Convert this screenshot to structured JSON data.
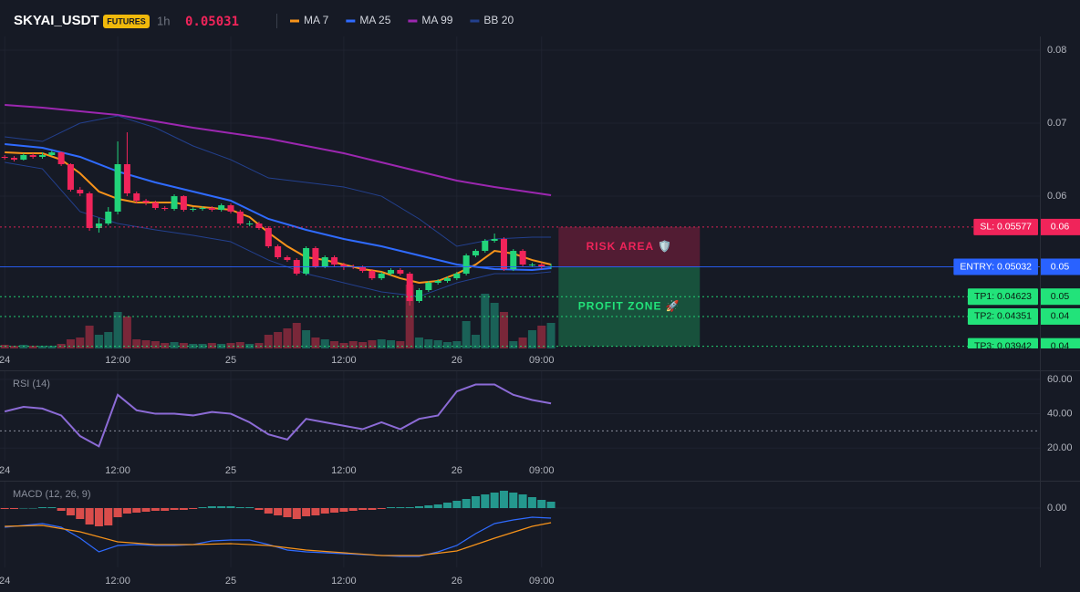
{
  "header": {
    "symbol": "SKYAI_USDT",
    "badge": "FUTURES",
    "interval": "1h",
    "price": 0.05031
  },
  "chart_data": [
    {
      "type": "candlestick",
      "x": [
        0,
        1,
        2,
        3,
        4,
        5,
        6,
        7,
        8,
        9,
        10,
        11,
        12,
        13,
        14,
        15,
        16,
        17,
        18,
        19,
        20,
        21,
        22,
        23,
        24,
        25,
        26,
        27,
        28,
        29,
        30,
        31,
        32,
        33,
        34,
        35,
        36,
        37,
        38,
        39,
        40,
        41,
        42,
        43,
        44,
        45,
        46,
        47,
        48,
        49,
        50,
        51,
        52,
        53,
        54,
        55,
        56,
        57,
        58
      ],
      "opens": [
        0.06538,
        0.06525,
        0.065,
        0.06563,
        0.06538,
        0.06563,
        0.066,
        0.06438,
        0.06088,
        0.06038,
        0.05563,
        0.05625,
        0.05788,
        0.06438,
        0.06038,
        0.05938,
        0.05913,
        0.05838,
        0.05825,
        0.06,
        0.05813,
        0.05825,
        0.05838,
        0.05813,
        0.05875,
        0.05788,
        0.05625,
        0.05625,
        0.05563,
        0.05313,
        0.05163,
        0.05125,
        0.04938,
        0.05288,
        0.05038,
        0.05163,
        0.05063,
        0.05038,
        0.05025,
        0.04975,
        0.04875,
        0.04938,
        0.04988,
        0.04938,
        0.04563,
        0.04713,
        0.04813,
        0.04838,
        0.04875,
        0.04938,
        0.05188,
        0.0525,
        0.05388,
        0.05413,
        0.05,
        0.0525,
        0.05063,
        0.05063,
        0.05038
      ],
      "highs": [
        0.06563,
        0.0655,
        0.06588,
        0.06588,
        0.066,
        0.06625,
        0.06613,
        0.0645,
        0.06125,
        0.06063,
        0.057,
        0.0585,
        0.0675,
        0.06875,
        0.06063,
        0.05963,
        0.05938,
        0.05863,
        0.06025,
        0.06013,
        0.0585,
        0.05863,
        0.05863,
        0.059,
        0.059,
        0.05813,
        0.05663,
        0.0565,
        0.05588,
        0.05338,
        0.05188,
        0.0515,
        0.05313,
        0.05313,
        0.05188,
        0.05188,
        0.05088,
        0.05063,
        0.0505,
        0.05,
        0.04963,
        0.05013,
        0.05013,
        0.04963,
        0.04738,
        0.04838,
        0.04863,
        0.049,
        0.04963,
        0.05213,
        0.05275,
        0.05413,
        0.05488,
        0.05438,
        0.05275,
        0.05275,
        0.05088,
        0.05088,
        0.05075
      ],
      "lows": [
        0.065,
        0.06475,
        0.06488,
        0.06513,
        0.06513,
        0.0655,
        0.06413,
        0.06063,
        0.06,
        0.05525,
        0.055,
        0.056,
        0.0575,
        0.06,
        0.059,
        0.05875,
        0.05813,
        0.058,
        0.058,
        0.05788,
        0.05788,
        0.058,
        0.05788,
        0.05788,
        0.05763,
        0.056,
        0.05588,
        0.05538,
        0.05288,
        0.05138,
        0.051,
        0.04913,
        0.04913,
        0.05013,
        0.05013,
        0.05038,
        0.04988,
        0.05,
        0.0495,
        0.0485,
        0.0485,
        0.04913,
        0.04913,
        0.045,
        0.04538,
        0.04688,
        0.04788,
        0.04813,
        0.0485,
        0.04913,
        0.05163,
        0.05225,
        0.05363,
        0.04975,
        0.04975,
        0.05038,
        0.05038,
        0.05,
        0.05
      ],
      "closes": [
        0.06525,
        0.065,
        0.06563,
        0.06538,
        0.06563,
        0.066,
        0.06438,
        0.06088,
        0.06038,
        0.05563,
        0.05625,
        0.05788,
        0.06438,
        0.06038,
        0.05938,
        0.05913,
        0.05838,
        0.05825,
        0.06,
        0.05813,
        0.05825,
        0.05838,
        0.05813,
        0.05875,
        0.05788,
        0.05625,
        0.05625,
        0.05563,
        0.05313,
        0.05163,
        0.05125,
        0.04938,
        0.05288,
        0.05038,
        0.05163,
        0.05063,
        0.05038,
        0.05025,
        0.04975,
        0.04875,
        0.04938,
        0.04988,
        0.04938,
        0.04563,
        0.04713,
        0.04813,
        0.04838,
        0.04875,
        0.04938,
        0.05188,
        0.0525,
        0.05388,
        0.05413,
        0.05,
        0.0525,
        0.05063,
        0.05063,
        0.05038,
        0.05038
      ],
      "volume": [
        4,
        3,
        4,
        3,
        3,
        3,
        5,
        10,
        12,
        25,
        15,
        18,
        40,
        35,
        10,
        9,
        8,
        6,
        7,
        6,
        5,
        5,
        6,
        5,
        6,
        7,
        5,
        6,
        15,
        18,
        22,
        28,
        20,
        12,
        10,
        8,
        6,
        8,
        7,
        9,
        10,
        9,
        8,
        70,
        12,
        10,
        9,
        7,
        8,
        30,
        15,
        60,
        50,
        40,
        8,
        12,
        20,
        25,
        28
      ],
      "volume_ylim": [
        0,
        100
      ],
      "up_color": "#22d37a",
      "down_color": "#f0245a",
      "volume_up_color": "#1b6f60",
      "volume_down_color": "#8b2a3d",
      "series": [
        {
          "name": "MA 7",
          "color": "#f7931a",
          "x": [
            0,
            2,
            4,
            6,
            8,
            10,
            12,
            14,
            16,
            18,
            20,
            22,
            24,
            26,
            28,
            30,
            32,
            34,
            36,
            38,
            40,
            42,
            44,
            46,
            48,
            50,
            52,
            54,
            56,
            58
          ],
          "values": [
            0.066,
            0.06588,
            0.06588,
            0.065,
            0.06313,
            0.06063,
            0.05963,
            0.05913,
            0.05913,
            0.05913,
            0.05863,
            0.05838,
            0.05813,
            0.05713,
            0.055,
            0.05313,
            0.05163,
            0.05125,
            0.05063,
            0.05,
            0.04963,
            0.04875,
            0.04813,
            0.04838,
            0.04938,
            0.05063,
            0.0525,
            0.05213,
            0.05125,
            0.05063
          ]
        },
        {
          "name": "MA 25",
          "color": "#2f6bff",
          "x": [
            0,
            4,
            8,
            12,
            16,
            20,
            24,
            28,
            32,
            36,
            40,
            44,
            48,
            52,
            56,
            58
          ],
          "values": [
            0.06713,
            0.06663,
            0.06538,
            0.06338,
            0.06188,
            0.06063,
            0.05938,
            0.05688,
            0.05538,
            0.05413,
            0.05313,
            0.05188,
            0.05063,
            0.05,
            0.04988,
            0.05013
          ]
        },
        {
          "name": "MA 99",
          "color": "#9c27b0",
          "x": [
            0,
            4,
            8,
            12,
            16,
            20,
            24,
            28,
            32,
            36,
            40,
            44,
            48,
            52,
            56,
            58
          ],
          "values": [
            0.0725,
            0.07213,
            0.07163,
            0.07113,
            0.07025,
            0.06938,
            0.06863,
            0.06788,
            0.06688,
            0.06588,
            0.06463,
            0.06338,
            0.06213,
            0.06125,
            0.0605,
            0.06013
          ]
        },
        {
          "name": "BB 20",
          "color": "#23408e",
          "x": [
            0,
            4,
            8,
            12,
            16,
            20,
            24,
            28,
            32,
            36,
            40,
            44,
            48,
            52,
            56,
            58
          ],
          "values": [
            0.06813,
            0.0675,
            0.07,
            0.071,
            0.06938,
            0.06688,
            0.065,
            0.0625,
            0.06188,
            0.06125,
            0.06,
            0.05688,
            0.05313,
            0.05413,
            0.05438,
            0.05438
          ],
          "lower": [
            0.06463,
            0.06375,
            0.05788,
            0.05625,
            0.05538,
            0.05463,
            0.05375,
            0.05125,
            0.04938,
            0.04813,
            0.04688,
            0.04625,
            0.04813,
            0.04938,
            0.04938,
            0.04963
          ]
        }
      ],
      "levels": [
        {
          "value": 0.05577,
          "label": "SL: 0.05577",
          "axis_label": "0.06",
          "color": "#f0245a",
          "text_color": "#ffffff",
          "style": "dotted"
        },
        {
          "value": 0.05032,
          "label": "ENTRY: 0.05032",
          "axis_label": "0.05",
          "color": "#2962ff",
          "text_color": "#ffffff",
          "style": "solid"
        },
        {
          "value": 0.04623,
          "label": "TP1: 0.04623",
          "axis_label": "0.05",
          "color": "#22e37a",
          "text_color": "#0b1a12",
          "style": "dotted"
        },
        {
          "value": 0.04351,
          "label": "TP2: 0.04351",
          "axis_label": "0.04",
          "color": "#22e37a",
          "text_color": "#0b1a12",
          "style": "dotted"
        },
        {
          "value": 0.03942,
          "label": "TP3: 0.03942",
          "axis_label": "0.04",
          "color": "#22e37a",
          "text_color": "#0b1a12",
          "style": "dotted"
        }
      ],
      "zones": [
        {
          "label": "RISK AREA 🛡️",
          "from": 0.05577,
          "to": 0.05032,
          "x_from": 58.8,
          "x_to": 73.8,
          "color": "#f0245a"
        },
        {
          "label": "PROFIT ZONE 🚀",
          "from": 0.05032,
          "to": 0.03942,
          "x_from": 58.8,
          "x_to": 73.8,
          "color": "#22e37a"
        }
      ],
      "xlim": [
        -0.5,
        109.9
      ],
      "xticks": [
        {
          "value": 0,
          "label": "24"
        },
        {
          "value": 12,
          "label": "12:00"
        },
        {
          "value": 24,
          "label": "25"
        },
        {
          "value": 36,
          "label": "12:00"
        },
        {
          "value": 48,
          "label": "26"
        },
        {
          "value": 57,
          "label": "09:00"
        }
      ],
      "ylim": [
        0.03913,
        0.08188
      ],
      "yticks": [
        0.06,
        0.07,
        0.08
      ],
      "grid": true
    },
    {
      "type": "line",
      "title": "RSI (14)",
      "series": [
        {
          "color": "#8c6bd6",
          "x": [
            0,
            2,
            4,
            6,
            8,
            10,
            12,
            14,
            16,
            18,
            20,
            22,
            24,
            26,
            28,
            30,
            32,
            34,
            36,
            38,
            40,
            42,
            44,
            46,
            48,
            50,
            52,
            54,
            56,
            58
          ],
          "values": [
            41.3,
            44,
            43,
            39,
            27,
            21,
            51,
            42,
            40,
            40,
            39,
            41,
            40,
            35,
            28,
            25,
            37,
            35,
            33,
            31,
            35,
            31,
            37,
            39,
            53,
            57,
            57,
            51,
            48,
            46
          ]
        }
      ],
      "reference_line": 30,
      "xlim": [
        -0.5,
        109.9
      ],
      "xticks": [
        {
          "value": 0,
          "label": "24"
        },
        {
          "value": 12,
          "label": "12:00"
        },
        {
          "value": 24,
          "label": "25"
        },
        {
          "value": 36,
          "label": "12:00"
        },
        {
          "value": 48,
          "label": "26"
        },
        {
          "value": 57,
          "label": "09:00"
        }
      ],
      "ylim": [
        12.7,
        64.7
      ],
      "yticks": [
        {
          "value": 20,
          "label": "20.00"
        },
        {
          "value": 40,
          "label": "40.00"
        },
        {
          "value": 60,
          "label": "60.00"
        }
      ],
      "grid": true
    },
    {
      "type": "macd",
      "title": "MACD (12, 26, 9)",
      "x": [
        0,
        1,
        2,
        3,
        4,
        5,
        6,
        7,
        8,
        9,
        10,
        11,
        12,
        13,
        14,
        15,
        16,
        17,
        18,
        19,
        20,
        21,
        22,
        23,
        24,
        25,
        26,
        27,
        28,
        29,
        30,
        31,
        32,
        33,
        34,
        35,
        36,
        37,
        38,
        39,
        40,
        41,
        42,
        43,
        44,
        45,
        46,
        47,
        48,
        49,
        50,
        51,
        52,
        53,
        54,
        55,
        56,
        57,
        58
      ],
      "histogram": [
        -0.0001,
        -0.0001,
        0,
        0,
        0.0001,
        0.0001,
        -0.0003,
        -0.0008,
        -0.0012,
        -0.0018,
        -0.002,
        -0.0019,
        -0.001,
        -0.0006,
        -0.0005,
        -0.0004,
        -0.0003,
        -0.0003,
        -0.0002,
        -0.0002,
        -0.0001,
        0.0001,
        0.0002,
        0.0002,
        0.0002,
        0.0001,
        0.0001,
        -0.0002,
        -0.0006,
        -0.0008,
        -0.001,
        -0.0012,
        -0.0009,
        -0.0008,
        -0.0006,
        -0.0005,
        -0.0004,
        -0.0003,
        -0.0002,
        -0.0002,
        -0.0001,
        0.0001,
        0.0001,
        0.0001,
        0.0002,
        0.0003,
        0.0004,
        0.0006,
        0.0008,
        0.001,
        0.0013,
        0.0015,
        0.0017,
        0.0019,
        0.0017,
        0.0015,
        0.0012,
        0.0009,
        0.0007
      ],
      "positive_color": "#26a69a",
      "negative_color": "#ef5350",
      "series": [
        {
          "color": "#2f6bff",
          "x": [
            0,
            2,
            4,
            6,
            8,
            10,
            12,
            14,
            16,
            18,
            20,
            22,
            24,
            26,
            28,
            30,
            32,
            34,
            36,
            38,
            40,
            42,
            44,
            46,
            48,
            50,
            52,
            54,
            56,
            58
          ],
          "values": [
            -0.0021,
            -0.0019,
            -0.0017,
            -0.0021,
            -0.0033,
            -0.0048,
            -0.0041,
            -0.004,
            -0.0041,
            -0.0041,
            -0.004,
            -0.0036,
            -0.0035,
            -0.0035,
            -0.004,
            -0.0046,
            -0.0048,
            -0.0049,
            -0.005,
            -0.0051,
            -0.0052,
            -0.0053,
            -0.0053,
            -0.0048,
            -0.0041,
            -0.0028,
            -0.0017,
            -0.0013,
            -0.001,
            -0.0011
          ]
        },
        {
          "color": "#f7931a",
          "x": [
            0,
            4,
            8,
            12,
            16,
            20,
            24,
            28,
            32,
            36,
            40,
            44,
            48,
            52,
            56,
            58
          ],
          "values": [
            -0.002,
            -0.0019,
            -0.0026,
            -0.0037,
            -0.004,
            -0.004,
            -0.0039,
            -0.0041,
            -0.0046,
            -0.0049,
            -0.0052,
            -0.0052,
            -0.0047,
            -0.0033,
            -0.002,
            -0.0016
          ]
        }
      ],
      "xlim": [
        -0.5,
        109.9
      ],
      "xticks": [
        {
          "value": 0,
          "label": "24"
        },
        {
          "value": 12,
          "label": "12:00"
        },
        {
          "value": 24,
          "label": "25"
        },
        {
          "value": 36,
          "label": "12:00"
        },
        {
          "value": 48,
          "label": "26"
        },
        {
          "value": 57,
          "label": "09:00"
        }
      ],
      "ylim": [
        -0.0065,
        0.0029
      ],
      "yticks": [
        {
          "value": 0,
          "label": "0.00"
        }
      ],
      "grid": true
    }
  ]
}
